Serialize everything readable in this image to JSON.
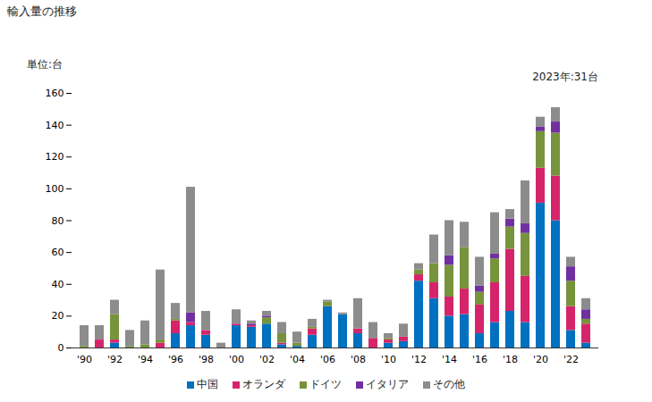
{
  "chart_data": {
    "type": "bar",
    "stacked": true,
    "title": "輸入量の推移",
    "y_label": "単位:台",
    "annotation": "2023年:31台",
    "categories": [
      "'90",
      null,
      "'92",
      null,
      "'94",
      null,
      "'96",
      null,
      "'98",
      null,
      "'00",
      null,
      "'02",
      null,
      "'04",
      null,
      "'06",
      null,
      "'08",
      null,
      "'10",
      null,
      "'12",
      null,
      "'14",
      null,
      "'16",
      null,
      "'18",
      null,
      "'20",
      null,
      "'22",
      null
    ],
    "series": [
      {
        "name": "中国",
        "color": "#0070c0",
        "values": [
          0,
          0,
          3,
          0,
          0,
          0,
          9,
          14,
          8,
          0,
          14,
          13,
          15,
          2,
          1,
          8,
          26,
          21,
          9,
          0,
          3,
          4,
          42,
          31,
          20,
          21,
          9,
          16,
          23,
          16,
          91,
          80,
          11,
          3
        ]
      },
      {
        "name": "オランダ",
        "color": "#d6246b",
        "values": [
          0,
          5,
          2,
          0,
          0,
          3,
          8,
          2,
          3,
          0,
          1,
          1,
          0,
          1,
          0,
          4,
          0,
          0,
          3,
          6,
          2,
          3,
          4,
          10,
          12,
          16,
          18,
          25,
          39,
          29,
          22,
          28,
          15,
          12
        ]
      },
      {
        "name": "ドイツ",
        "color": "#77933c",
        "values": [
          1,
          0,
          16,
          1,
          2,
          2,
          1,
          0,
          0,
          0,
          0,
          0,
          4,
          6,
          2,
          1,
          3,
          0,
          0,
          0,
          1,
          0,
          3,
          12,
          20,
          26,
          8,
          15,
          14,
          27,
          23,
          27,
          16,
          3
        ]
      },
      {
        "name": "イタリア",
        "color": "#7030a0",
        "values": [
          0,
          0,
          0,
          0,
          0,
          0,
          0,
          6,
          0,
          0,
          0,
          1,
          1,
          0,
          0,
          0,
          0,
          0,
          0,
          0,
          0,
          0,
          0,
          0,
          6,
          0,
          4,
          3,
          5,
          6,
          3,
          7,
          9,
          6
        ]
      },
      {
        "name": "その他",
        "color": "#8c8c8c",
        "values": [
          13,
          9,
          9,
          10,
          15,
          44,
          10,
          79,
          12,
          3,
          9,
          2,
          3,
          7,
          7,
          5,
          1,
          1,
          19,
          10,
          3,
          8,
          4,
          18,
          22,
          16,
          18,
          26,
          6,
          27,
          6,
          9,
          6,
          7
        ]
      }
    ],
    "ylim": [
      0,
      160
    ],
    "yticks": [
      0,
      20,
      40,
      60,
      80,
      100,
      120,
      140,
      160
    ],
    "grid": false,
    "legend": "bottom"
  }
}
